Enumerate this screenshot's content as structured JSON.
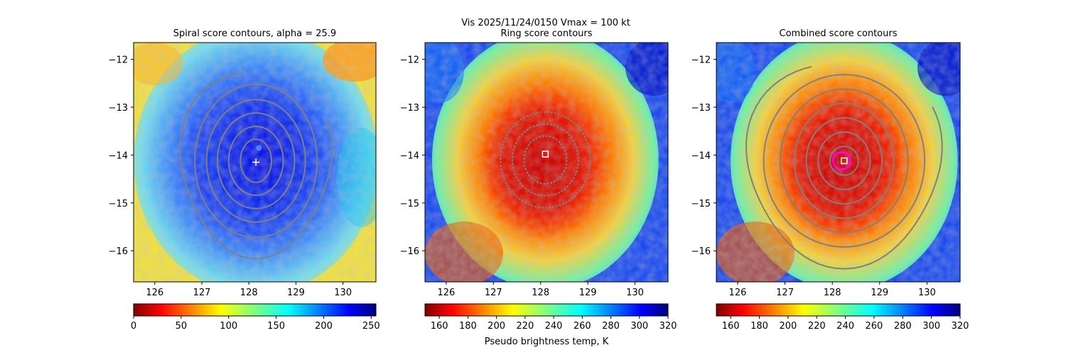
{
  "suptitle_line1": "Vis  2025/11/24/0150    Vmax = 100 kt",
  "chart_data": [
    {
      "type": "heatmap",
      "title": "Spiral score contours, alpha = 25.9",
      "xlim": [
        125.55,
        130.7
      ],
      "ylim": [
        -16.65,
        -11.65
      ],
      "xticks": [
        126,
        127,
        128,
        129,
        130
      ],
      "yticks": [
        -12,
        -13,
        -14,
        -15,
        -16
      ],
      "colormap": "jet",
      "image_palette": "blue",
      "colorbar": {
        "cmap": "jet_r",
        "range": [
          0,
          255
        ],
        "ticks": [
          0,
          50,
          100,
          150,
          200,
          250
        ],
        "label": ""
      },
      "marker": {
        "type": "plus",
        "lon": 128.15,
        "lat": -14.15,
        "color": "#ffffff"
      },
      "contour_center": {
        "lon": 128.15,
        "lat": -14.12
      },
      "contour_levels": [
        {
          "rx": 0.33,
          "ry": 0.45
        },
        {
          "rx": 0.58,
          "ry": 0.72
        },
        {
          "rx": 0.82,
          "ry": 1.0
        },
        {
          "rx": 1.05,
          "ry": 1.28
        },
        {
          "rx": 1.3,
          "ry": 1.6
        }
      ],
      "arc_level": {
        "rx": 1.6,
        "ry": 1.95,
        "from_deg": 100,
        "to_deg": 385
      }
    },
    {
      "type": "heatmap",
      "title": "Ring score contours",
      "xlim": [
        125.55,
        130.7
      ],
      "ylim": [
        -16.65,
        -11.65
      ],
      "xticks": [
        126,
        127,
        128,
        129,
        130
      ],
      "yticks": [
        -12,
        -13,
        -14,
        -15,
        -16
      ],
      "colormap": "jet",
      "image_palette": "warm",
      "colorbar": {
        "cmap": "jet_r",
        "range": [
          150,
          320
        ],
        "ticks": [
          160,
          180,
          200,
          220,
          240,
          260,
          280,
          300,
          320
        ],
        "label": "Pseudo brightness temp, K"
      },
      "marker": {
        "type": "square",
        "lon": 128.1,
        "lat": -13.98,
        "color": "#ffffff"
      },
      "ring_center": {
        "lon": 128.1,
        "lat": -14.1
      },
      "ring_levels": [
        {
          "rx": 0.95,
          "ry": 1.0
        },
        {
          "rx": 0.7,
          "ry": 0.75
        },
        {
          "rx": 0.45,
          "ry": 0.5
        }
      ]
    },
    {
      "type": "heatmap",
      "title": "Combined score contours",
      "xlim": [
        125.55,
        130.7
      ],
      "ylim": [
        -16.65,
        -11.65
      ],
      "xticks": [
        126,
        127,
        128,
        129,
        130
      ],
      "yticks": [
        -12,
        -13,
        -14,
        -15,
        -16
      ],
      "colormap": "jet",
      "image_palette": "warm",
      "colorbar": {
        "cmap": "jet_r",
        "range": [
          150,
          320
        ],
        "ticks": [
          160,
          180,
          200,
          220,
          240,
          260,
          280,
          300,
          320
        ],
        "label": ""
      },
      "marker": {
        "type": "square",
        "lon": 128.25,
        "lat": -14.12,
        "color": "#ffffff"
      },
      "circle": {
        "lon": 128.2,
        "lat": -14.12,
        "r_deg": 0.18,
        "color": "#ff00ff"
      },
      "contour_center": {
        "lon": 128.25,
        "lat": -14.12
      },
      "contour_levels": [
        {
          "rx": 0.3,
          "ry": 0.3
        },
        {
          "rx": 0.55,
          "ry": 0.6
        },
        {
          "rx": 0.8,
          "ry": 0.9
        },
        {
          "rx": 1.05,
          "ry": 1.2
        },
        {
          "rx": 1.35,
          "ry": 1.5
        },
        {
          "rx": 1.7,
          "ry": 1.8
        }
      ],
      "arc_level": {
        "rx": 2.05,
        "ry": 2.15,
        "from_deg": 110,
        "to_deg": 390
      }
    }
  ]
}
